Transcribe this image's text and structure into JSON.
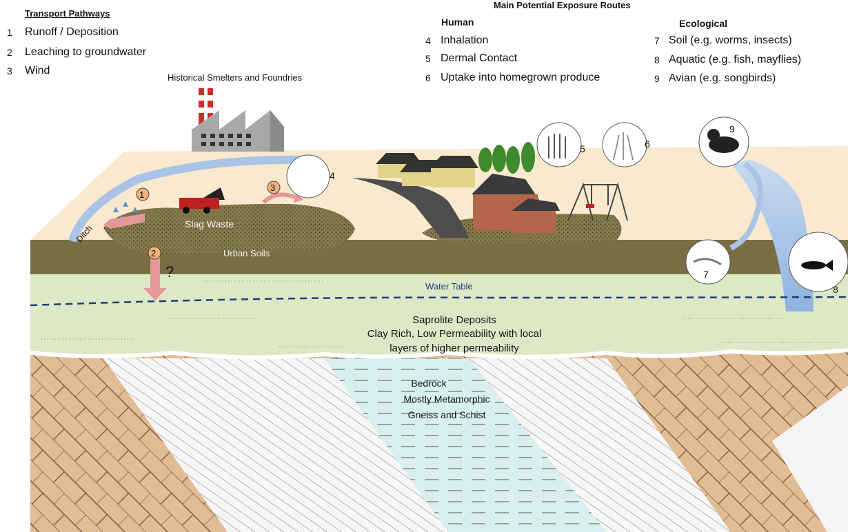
{
  "legend": {
    "transport_title": "Transport Pathways",
    "transport": [
      {
        "num": "1",
        "label": "Runoff / Deposition"
      },
      {
        "num": "2",
        "label": "Leaching to groundwater"
      },
      {
        "num": "3",
        "label": "Wind"
      }
    ],
    "exposure_title": "Main Potential Exposure Routes",
    "human_title": "Human",
    "human": [
      {
        "num": "4",
        "label": "Inhalation"
      },
      {
        "num": "5",
        "label": "Dermal Contact"
      },
      {
        "num": "6",
        "label": "Uptake into homegrown produce"
      }
    ],
    "eco_title": "Ecological",
    "eco": [
      {
        "num": "7",
        "label": "Soil (e.g. worms, insects)"
      },
      {
        "num": "8",
        "label": "Aquatic (e.g. fish, mayflies)"
      },
      {
        "num": "9",
        "label": "Avian (e.g. songbirds)"
      }
    ]
  },
  "labels": {
    "smelters": "Historical Smelters and Foundries",
    "slag": "Slag Waste",
    "ditch": "Ditch",
    "urban_soils": "Urban Soils",
    "question": "?",
    "water_table": "Water Table",
    "saprolite_1": "Saprolite Deposits",
    "saprolite_2": "Clay Rich, Low Permeability with local",
    "saprolite_3": "layers of higher permeability",
    "bedrock_1": "Bedrock",
    "bedrock_2": "Mostly Metamorphic",
    "bedrock_3": "Gneiss and Schist"
  },
  "markers": {
    "m1": "1",
    "m2": "2",
    "m3": "3",
    "m4": "4",
    "m5": "5",
    "m6": "6",
    "m7": "7",
    "m8": "8",
    "m9": "9"
  },
  "colors": {
    "sky_ground": "#f8e9cf",
    "urban_soil": "#7a6e45",
    "saprolite": "#dde8c7",
    "brick": "#e2bd94",
    "schist": "#f3f3f3",
    "aquifer": "#d8efef",
    "arrow": "#e4989a",
    "water_table": "#1d3d75",
    "stream": "#a9c4e6"
  }
}
